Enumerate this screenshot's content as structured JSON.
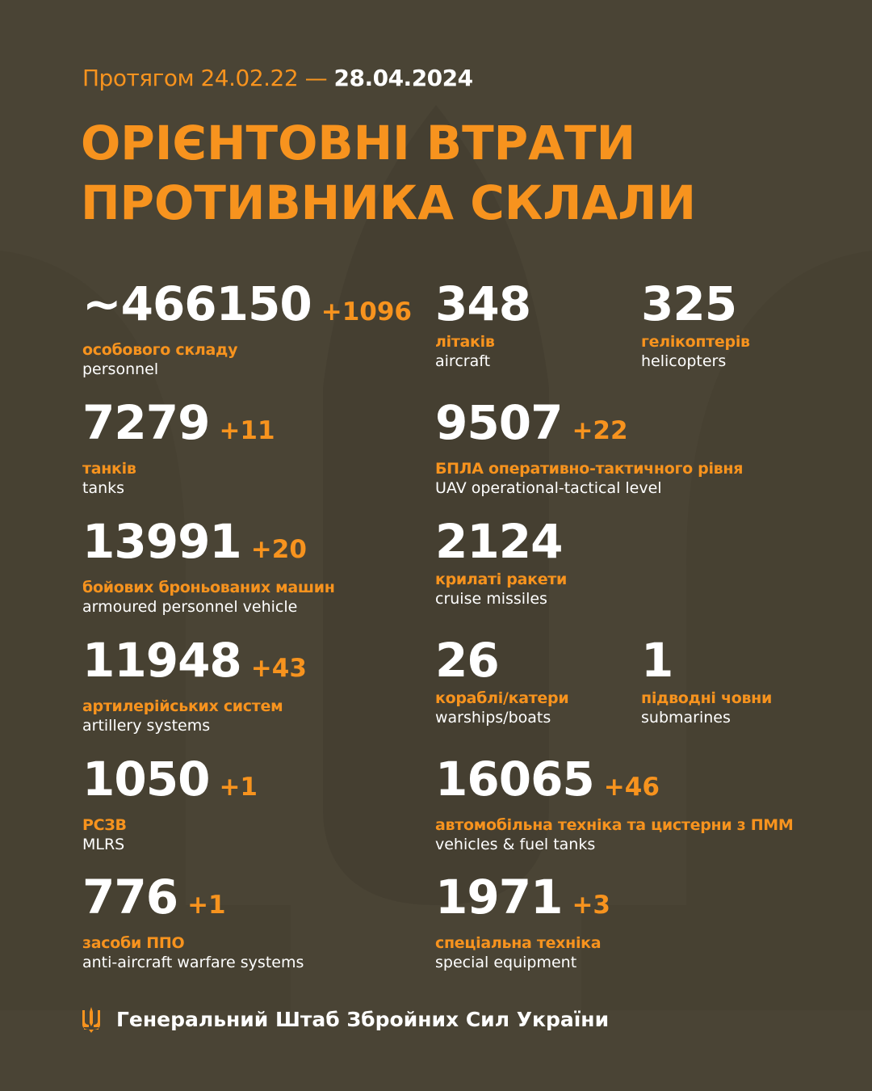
{
  "header": {
    "period_prefix": "Протягом 24.02.22 —",
    "period_end": "28.04.2024",
    "title_line1": "ОРІЄНТОВНІ ВТРАТИ",
    "title_line2": "ПРОТИВНИКА СКЛАЛИ"
  },
  "items": [
    {
      "value": "~466150",
      "increase": "+1096",
      "ua": "особового складу",
      "en": "personnel"
    },
    {
      "value": "348",
      "increase": "",
      "ua": "літаків",
      "en": "aircraft"
    },
    {
      "value": "325",
      "increase": "",
      "ua": "гелікоптерів",
      "en": "helicopters"
    },
    {
      "value": "7279",
      "increase": "+11",
      "ua": "танків",
      "en": "tanks"
    },
    {
      "value": "9507",
      "increase": "+22",
      "ua": "БПЛА оперативно-тактичного рівня",
      "en": "UAV operational-tactical level"
    },
    {
      "value": "13991",
      "increase": "+20",
      "ua": "бойових броньованих машин",
      "en": "armoured personnel vehicle"
    },
    {
      "value": "2124",
      "increase": "",
      "ua": "крилаті ракети",
      "en": "cruise missiles"
    },
    {
      "value": "11948",
      "increase": "+43",
      "ua": "артилерійських систем",
      "en": "artillery systems"
    },
    {
      "value": "26",
      "increase": "",
      "ua": "кораблі/катери",
      "en": "warships/boats"
    },
    {
      "value": "1",
      "increase": "",
      "ua": "підводні човни",
      "en": "submarines"
    },
    {
      "value": "1050",
      "increase": "+1",
      "ua": "РСЗВ",
      "en": "MLRS"
    },
    {
      "value": "16065",
      "increase": "+46",
      "ua": "автомобільна техніка та цистерни з ПММ",
      "en": "vehicles & fuel tanks"
    },
    {
      "value": "776",
      "increase": "+1",
      "ua": "засоби ППО",
      "en": "anti-aircraft warfare systems"
    },
    {
      "value": "1971",
      "increase": "+3",
      "ua": "спеціальна техніка",
      "en": "special equipment"
    }
  ],
  "footer": {
    "label": "Генеральний Штаб Збройних Сил України",
    "icon": "trident-icon"
  },
  "colors": {
    "background": "#4a4435",
    "accent": "#f7931e",
    "text": "#ffffff"
  }
}
